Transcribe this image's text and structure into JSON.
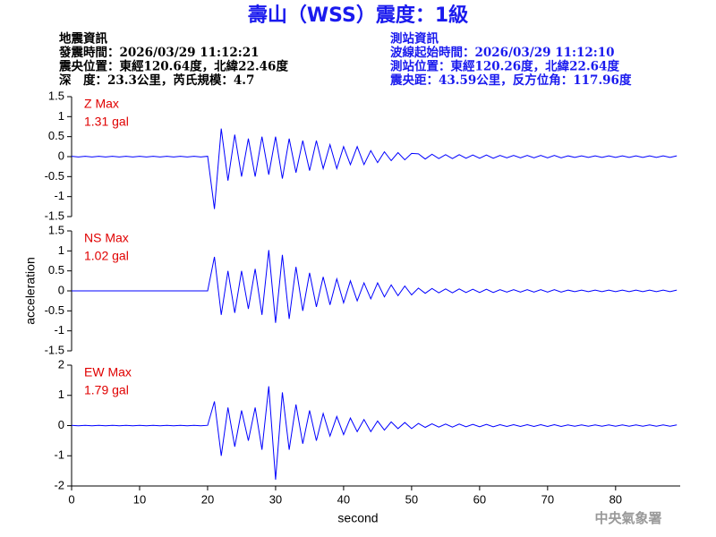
{
  "title": "壽山（WSS）震度：1級",
  "info_left": [
    "地震資訊",
    "發震時間：2026/03/29 11:12:21",
    "震央位置：東經120.64度，北緯22.46度",
    "深　度：23.3公里，芮氏規模：4.7"
  ],
  "info_right": [
    "測站資訊",
    "波線起始時間：2026/03/29 11:12:10",
    "測站位置：東經120.26度，北緯22.64度",
    "震央距：43.59公里，反方位角：117.96度"
  ],
  "xlabel": "second",
  "ylabel": "acceleration",
  "watermark": "中央氣象署",
  "chart_data": [
    {
      "type": "line",
      "label": "Z Max",
      "max_label": "1.31 gal",
      "color": "#0000ff",
      "xlim": [
        0,
        89.5
      ],
      "ylim": [
        -1.5,
        1.5
      ],
      "yticks": [
        -1.5,
        -1,
        -0.5,
        0,
        0.5,
        1,
        1.5
      ],
      "x": [
        0,
        1,
        2,
        3,
        4,
        5,
        6,
        7,
        8,
        9,
        10,
        11,
        12,
        13,
        14,
        15,
        16,
        17,
        18,
        19,
        20,
        21,
        22,
        23,
        24,
        25,
        26,
        27,
        28,
        29,
        30,
        31,
        32,
        33,
        34,
        35,
        36,
        37,
        38,
        39,
        40,
        41,
        42,
        43,
        44,
        45,
        46,
        47,
        48,
        49,
        50,
        51,
        52,
        53,
        54,
        55,
        56,
        57,
        58,
        59,
        60,
        61,
        62,
        63,
        64,
        65,
        66,
        67,
        68,
        69,
        70,
        71,
        72,
        73,
        74,
        75,
        76,
        77,
        78,
        79,
        80,
        81,
        82,
        83,
        84,
        85,
        86,
        87,
        88,
        89
      ],
      "values": [
        0.01,
        -0.01,
        0.01,
        -0.01,
        0.01,
        -0.01,
        0.01,
        -0.01,
        0.01,
        -0.01,
        0.01,
        -0.01,
        0.01,
        -0.01,
        0.01,
        -0.01,
        0.01,
        -0.01,
        0.01,
        -0.01,
        0.01,
        -1.31,
        0.7,
        -0.6,
        0.55,
        -0.5,
        0.45,
        -0.5,
        0.5,
        -0.45,
        0.5,
        -0.55,
        0.45,
        -0.4,
        0.4,
        -0.35,
        0.4,
        -0.3,
        0.3,
        -0.3,
        0.25,
        -0.2,
        0.25,
        -0.2,
        0.15,
        -0.15,
        0.12,
        -0.1,
        0.1,
        -0.08,
        0.08,
        0.07,
        -0.06,
        0.06,
        -0.05,
        0.05,
        -0.05,
        0.05,
        -0.04,
        0.04,
        -0.04,
        0.04,
        -0.04,
        0.03,
        -0.03,
        0.03,
        -0.03,
        0.03,
        -0.03,
        0.03,
        -0.03,
        0.03,
        -0.03,
        0.02,
        -0.02,
        0.02,
        -0.02,
        0.02,
        -0.02,
        0.02,
        -0.02,
        0.02,
        -0.02,
        0.02,
        -0.02,
        0.02,
        -0.02,
        0.02,
        -0.02,
        0.02
      ]
    },
    {
      "type": "line",
      "label": "NS Max",
      "max_label": "1.02 gal",
      "color": "#0000ff",
      "xlim": [
        0,
        89.5
      ],
      "ylim": [
        -1.5,
        1.5
      ],
      "yticks": [
        -1.5,
        -1,
        -0.5,
        0,
        0.5,
        1,
        1.5
      ],
      "x": [
        0,
        1,
        2,
        3,
        4,
        5,
        6,
        7,
        8,
        9,
        10,
        11,
        12,
        13,
        14,
        15,
        16,
        17,
        18,
        19,
        20,
        21,
        22,
        23,
        24,
        25,
        26,
        27,
        28,
        29,
        30,
        31,
        32,
        33,
        34,
        35,
        36,
        37,
        38,
        39,
        40,
        41,
        42,
        43,
        44,
        45,
        46,
        47,
        48,
        49,
        50,
        51,
        52,
        53,
        54,
        55,
        56,
        57,
        58,
        59,
        60,
        61,
        62,
        63,
        64,
        65,
        66,
        67,
        68,
        69,
        70,
        71,
        72,
        73,
        74,
        75,
        76,
        77,
        78,
        79,
        80,
        81,
        82,
        83,
        84,
        85,
        86,
        87,
        88,
        89
      ],
      "values": [
        0,
        0,
        0,
        0,
        0,
        0,
        0,
        0,
        0,
        0,
        0,
        0,
        0,
        0,
        0,
        0,
        0,
        0,
        0,
        0,
        0,
        0.85,
        -0.6,
        0.5,
        -0.55,
        0.5,
        -0.45,
        0.55,
        -0.6,
        1.02,
        -0.8,
        0.9,
        -0.7,
        0.6,
        -0.5,
        0.45,
        -0.4,
        0.35,
        -0.35,
        0.3,
        -0.3,
        0.25,
        -0.25,
        0.2,
        -0.2,
        0.2,
        -0.15,
        0.15,
        -0.12,
        0.12,
        -0.1,
        0.07,
        -0.06,
        0.06,
        -0.05,
        0.05,
        -0.05,
        0.05,
        -0.04,
        0.04,
        -0.04,
        0.04,
        -0.04,
        0.03,
        -0.03,
        0.03,
        -0.03,
        0.03,
        -0.03,
        0.03,
        -0.03,
        0.03,
        -0.03,
        0.02,
        -0.02,
        0.02,
        -0.02,
        0.02,
        -0.02,
        0.02,
        -0.02,
        0.02,
        -0.02,
        0.02,
        -0.02,
        0.02,
        -0.02,
        0.02,
        -0.02,
        0.02
      ]
    },
    {
      "type": "line",
      "label": "EW Max",
      "max_label": "1.79 gal",
      "color": "#0000ff",
      "xlim": [
        0,
        89.5
      ],
      "ylim": [
        -2,
        2
      ],
      "yticks": [
        -2,
        -1,
        0,
        1,
        2
      ],
      "xticks": [
        0,
        10,
        20,
        30,
        40,
        50,
        60,
        70,
        80
      ],
      "x": [
        0,
        1,
        2,
        3,
        4,
        5,
        6,
        7,
        8,
        9,
        10,
        11,
        12,
        13,
        14,
        15,
        16,
        17,
        18,
        19,
        20,
        21,
        22,
        23,
        24,
        25,
        26,
        27,
        28,
        29,
        30,
        31,
        32,
        33,
        34,
        35,
        36,
        37,
        38,
        39,
        40,
        41,
        42,
        43,
        44,
        45,
        46,
        47,
        48,
        49,
        50,
        51,
        52,
        53,
        54,
        55,
        56,
        57,
        58,
        59,
        60,
        61,
        62,
        63,
        64,
        65,
        66,
        67,
        68,
        69,
        70,
        71,
        72,
        73,
        74,
        75,
        76,
        77,
        78,
        79,
        80,
        81,
        82,
        83,
        84,
        85,
        86,
        87,
        88,
        89
      ],
      "values": [
        0.01,
        -0.01,
        0.01,
        -0.01,
        0.01,
        -0.01,
        0.01,
        -0.01,
        0.01,
        -0.01,
        0.01,
        -0.01,
        0.01,
        -0.01,
        0.01,
        -0.01,
        0.01,
        -0.01,
        0.01,
        -0.01,
        0.01,
        0.8,
        -1.0,
        0.6,
        -0.7,
        0.5,
        -0.5,
        0.6,
        -0.8,
        1.3,
        -1.79,
        1.1,
        -0.8,
        0.7,
        -0.6,
        0.5,
        -0.5,
        0.4,
        -0.35,
        0.3,
        -0.3,
        0.25,
        -0.2,
        0.2,
        -0.2,
        0.15,
        -0.15,
        0.12,
        -0.1,
        0.1,
        -0.1,
        0.07,
        -0.06,
        0.06,
        -0.05,
        0.05,
        -0.05,
        0.05,
        -0.04,
        0.04,
        -0.04,
        0.04,
        -0.04,
        0.03,
        -0.03,
        0.03,
        -0.03,
        0.03,
        -0.03,
        0.03,
        -0.03,
        0.03,
        -0.03,
        0.02,
        -0.02,
        0.02,
        -0.02,
        0.02,
        -0.02,
        0.02,
        -0.02,
        0.02,
        -0.02,
        0.02,
        -0.02,
        0.02,
        -0.02,
        0.02,
        -0.02,
        0.02
      ]
    }
  ]
}
